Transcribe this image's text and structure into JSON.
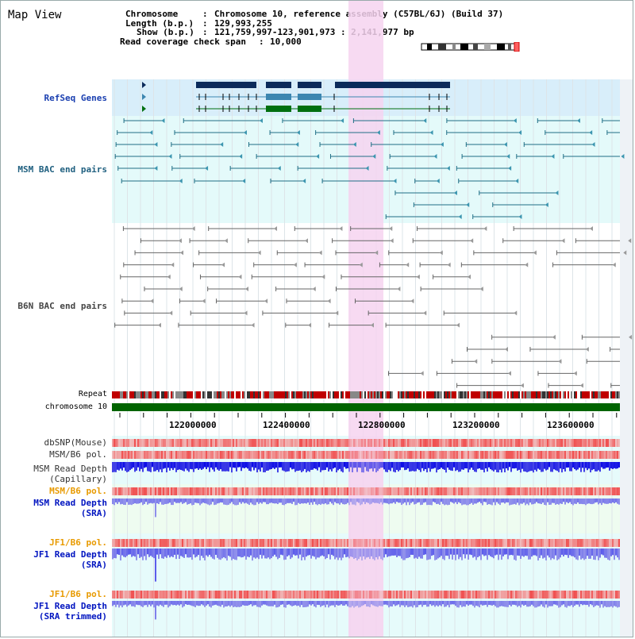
{
  "page_title": "Map View",
  "info": {
    "chromosome_key": "Chromosome",
    "chromosome_val": "Chromosome 10, reference assembly (C57BL/6J) (Build 37)",
    "length_key": "Length (b.p.)",
    "length_val": "129,993,255",
    "show_key": "Show (b.p.)",
    "show_val": "121,759,997-123,901,973 : 2,141,977 bp",
    "span_key": "Read coverage check span",
    "span_val": "10,000"
  },
  "tracks": {
    "refseq": "RefSeq Genes",
    "msm_bac": "MSM BAC end pairs",
    "b6n_bac": "B6N BAC end pairs",
    "repeat": "Repeat",
    "chromosome": "chromosome 10",
    "dbsnp": "dbSNP(Mouse)",
    "msm_b6_pol_1": "MSM/B6 pol.",
    "msm_depth_cap_1": "MSM Read Depth",
    "msm_depth_cap_2": "(Capillary)",
    "msm_b6_pol_2": "MSM/B6 pol.",
    "msm_depth_sra_1": "MSM Read Depth",
    "msm_depth_sra_2": "(SRA)",
    "jf1_b6_pol_1": "JF1/B6 pol.",
    "jf1_depth_sra_1": "JF1 Read Depth",
    "jf1_depth_sra_2": "(SRA)",
    "jf1_b6_pol_2": "JF1/B6 pol.",
    "jf1_depth_trim_1": "JF1 Read Depth",
    "jf1_depth_trim_2": "(SRA trimmed)"
  },
  "axis": {
    "ticks": [
      "122000000",
      "122400000",
      "122800000",
      "123200000",
      "123600000"
    ]
  },
  "colors": {
    "refseq_bg": "#d8eefa",
    "gene_dark": "#0b2a5a",
    "gene_mid": "#3c86b0",
    "gene_green": "#006f10",
    "msm_bg": "#e4fafa",
    "highlight": "#f6d4f0",
    "chrom_bar": "#006400",
    "snp_red": "#f04040",
    "depth_blue": "#1010e0",
    "depth_light": "#8080f0"
  },
  "icons": {
    "ideogram": "chromosome-ideogram-icon"
  }
}
